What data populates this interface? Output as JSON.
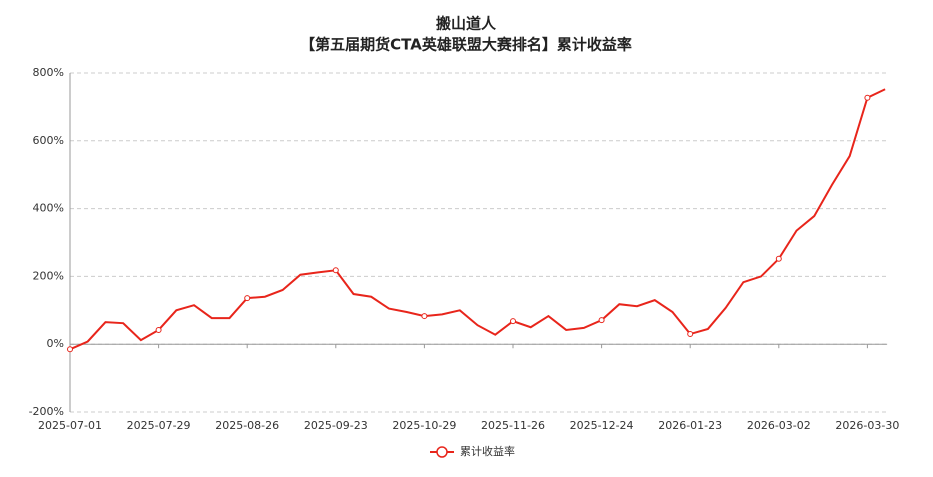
{
  "chart_data": {
    "type": "line",
    "title": "搬山道人",
    "subtitle": "【第五届期货CTA英雄联盟大赛排名】累计收益率",
    "categories": [
      "2025-07-01",
      null,
      null,
      null,
      null,
      "2025-07-29",
      null,
      null,
      null,
      null,
      "2025-08-26",
      null,
      null,
      null,
      null,
      "2025-09-23",
      null,
      null,
      null,
      null,
      "2025-10-29",
      null,
      null,
      null,
      null,
      "2025-11-26",
      null,
      null,
      null,
      null,
      "2025-12-24",
      null,
      null,
      null,
      null,
      "2026-01-23",
      null,
      null,
      null,
      null,
      "2026-03-02",
      null,
      null,
      null,
      null,
      "2026-03-30",
      null
    ],
    "series": [
      {
        "name": "累计收益率",
        "color": "#e8251b",
        "values": [
          -15,
          8,
          65,
          62,
          12,
          42,
          100,
          115,
          77,
          77,
          136,
          140,
          160,
          205,
          212,
          218,
          148,
          140,
          105,
          95,
          83,
          88,
          100,
          56,
          28,
          68,
          50,
          83,
          42,
          48,
          71,
          118,
          112,
          130,
          95,
          30,
          45,
          107,
          183,
          200,
          252,
          335,
          378,
          470,
          555,
          727,
          752
        ]
      }
    ],
    "ylim": [
      -200,
      800
    ],
    "yticks": [
      {
        "value": -200,
        "label": "-200%"
      },
      {
        "value": 0,
        "label": "0%"
      },
      {
        "value": 200,
        "label": "200%"
      },
      {
        "value": 400,
        "label": "400%"
      },
      {
        "value": 600,
        "label": "600%"
      },
      {
        "value": 800,
        "label": "800%"
      }
    ],
    "grid": true,
    "legend": "bottom"
  }
}
